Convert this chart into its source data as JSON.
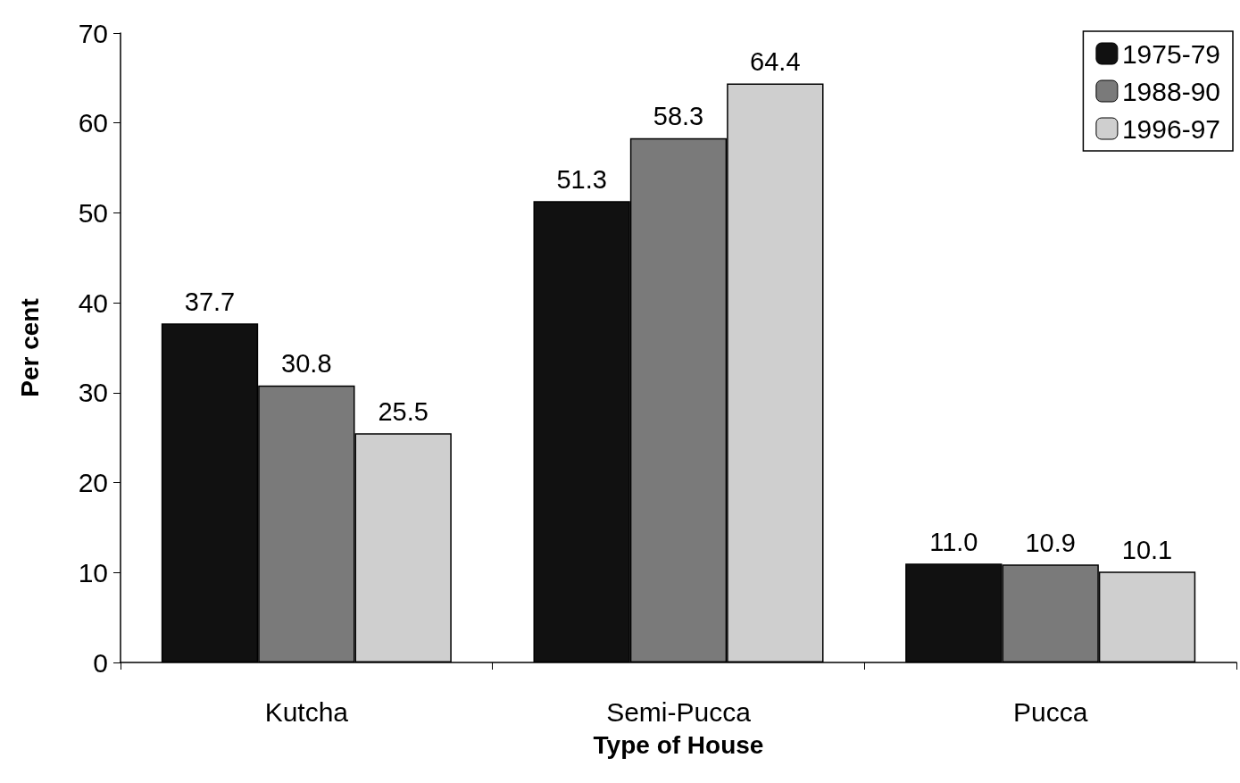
{
  "chart_data": {
    "type": "bar",
    "xlabel": "Type of House",
    "ylabel": "Per cent",
    "categories": [
      "Kutcha",
      "Semi-Pucca",
      "Pucca"
    ],
    "series": [
      {
        "name": "1975-79",
        "color": "#111111",
        "values": [
          37.7,
          51.3,
          11.0
        ],
        "value_labels": [
          "37.7",
          "51.3",
          "11.0"
        ]
      },
      {
        "name": "1988-90",
        "color": "#7a7a7a",
        "values": [
          30.8,
          58.3,
          10.9
        ],
        "value_labels": [
          "30.8",
          "58.3",
          "10.9"
        ]
      },
      {
        "name": "1996-97",
        "color": "#cfcfcf",
        "values": [
          25.5,
          64.4,
          10.1
        ],
        "value_labels": [
          "25.5",
          "64.4",
          "10.1"
        ]
      }
    ],
    "ylim": [
      0,
      70
    ],
    "yticks": [
      0,
      10,
      20,
      30,
      40,
      50,
      60,
      70
    ],
    "grid": false,
    "legend": "top right"
  }
}
